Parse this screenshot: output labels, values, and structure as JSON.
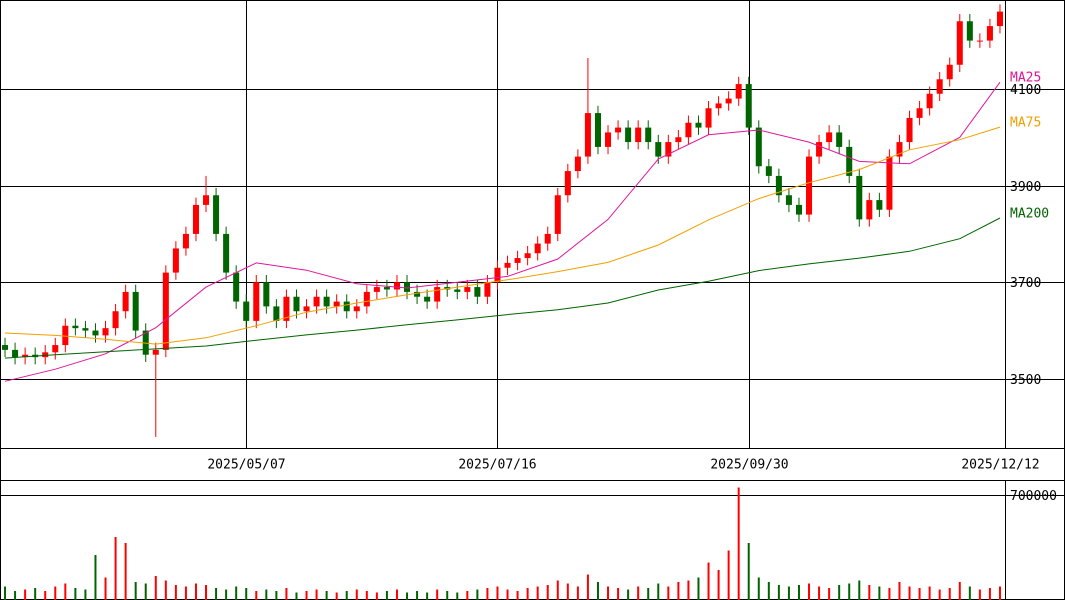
{
  "chart_data": {
    "type": "candlestick",
    "categories": [
      null,
      null,
      null,
      null,
      null,
      null,
      null,
      null,
      null,
      null,
      null,
      null,
      null,
      null,
      null,
      null,
      null,
      null,
      null,
      null,
      null,
      null,
      null,
      null,
      "2025/05/07",
      null,
      null,
      null,
      null,
      null,
      null,
      null,
      null,
      null,
      null,
      null,
      null,
      null,
      null,
      null,
      null,
      null,
      null,
      null,
      null,
      null,
      null,
      null,
      null,
      "2025/07/16",
      null,
      null,
      null,
      null,
      null,
      null,
      null,
      null,
      null,
      null,
      null,
      null,
      null,
      null,
      null,
      null,
      null,
      null,
      null,
      null,
      null,
      null,
      null,
      null,
      "2025/09/30",
      null,
      null,
      null,
      null,
      null,
      null,
      null,
      null,
      null,
      null,
      null,
      null,
      null,
      null,
      null,
      null,
      null,
      null,
      null,
      null,
      null,
      null,
      null,
      null,
      "2025/12/12"
    ],
    "open": [
      3570,
      3560,
      3545,
      3550,
      3545,
      3555,
      3570,
      3610,
      3605,
      3600,
      3590,
      3605,
      3640,
      3680,
      3600,
      3550,
      3560,
      3720,
      3770,
      3800,
      3860,
      3880,
      3800,
      3720,
      3660,
      3620,
      3700,
      3650,
      3620,
      3670,
      3640,
      3650,
      3670,
      3650,
      3660,
      3640,
      3650,
      3680,
      3690,
      3685,
      3700,
      3680,
      3670,
      3660,
      3690,
      3685,
      3680,
      3690,
      3670,
      3700,
      3730,
      3740,
      3750,
      3760,
      3780,
      3800,
      3880,
      3930,
      3960,
      4050,
      3980,
      4010,
      4020,
      3990,
      4020,
      3990,
      3960,
      3990,
      4000,
      4030,
      4020,
      4060,
      4070,
      4080,
      4110,
      4020,
      3940,
      3920,
      3880,
      3860,
      3840,
      3960,
      3990,
      4010,
      3980,
      3920,
      3830,
      3870,
      3850,
      3960,
      3990,
      4040,
      4060,
      4090,
      4120,
      4150,
      4240,
      4200,
      4200,
      4230
    ],
    "high": [
      3585,
      3575,
      3565,
      3565,
      3570,
      3585,
      3625,
      3625,
      3620,
      3615,
      3620,
      3655,
      3695,
      3695,
      3615,
      3575,
      3735,
      3785,
      3815,
      3875,
      3920,
      3895,
      3815,
      3735,
      3675,
      3715,
      3715,
      3665,
      3685,
      3685,
      3665,
      3685,
      3685,
      3675,
      3675,
      3665,
      3695,
      3705,
      3705,
      3715,
      3715,
      3695,
      3685,
      3705,
      3705,
      3700,
      3705,
      3705,
      3715,
      3745,
      3755,
      3765,
      3775,
      3795,
      3815,
      3895,
      3945,
      3975,
      4164,
      4065,
      4025,
      4035,
      4035,
      4035,
      4035,
      4005,
      4005,
      4015,
      4045,
      4045,
      4075,
      4085,
      4095,
      4125,
      4125,
      4035,
      3955,
      3935,
      3895,
      3875,
      3975,
      4005,
      4025,
      4025,
      3995,
      3935,
      3885,
      3885,
      3975,
      4005,
      4055,
      4075,
      4105,
      4135,
      4165,
      4255,
      4255,
      4215,
      4245,
      4275
    ],
    "low": [
      3545,
      3530,
      3530,
      3530,
      3530,
      3540,
      3555,
      3590,
      3585,
      3575,
      3575,
      3590,
      3625,
      3585,
      3535,
      3380,
      3545,
      3705,
      3755,
      3785,
      3845,
      3785,
      3705,
      3645,
      3605,
      3605,
      3635,
      3605,
      3605,
      3625,
      3625,
      3635,
      3635,
      3635,
      3625,
      3625,
      3635,
      3665,
      3670,
      3670,
      3665,
      3655,
      3645,
      3645,
      3670,
      3665,
      3665,
      3655,
      3655,
      3685,
      3715,
      3725,
      3735,
      3745,
      3765,
      3785,
      3865,
      3915,
      3945,
      3965,
      3965,
      3995,
      3975,
      3975,
      3975,
      3945,
      3945,
      3975,
      3985,
      4005,
      4005,
      4045,
      4055,
      4065,
      4005,
      3925,
      3905,
      3865,
      3845,
      3825,
      3825,
      3945,
      3975,
      3965,
      3905,
      3815,
      3815,
      3835,
      3835,
      3945,
      3975,
      4025,
      4045,
      4075,
      4105,
      4135,
      4185,
      4185,
      4185,
      4215
    ],
    "close": [
      3560,
      3545,
      3550,
      3545,
      3555,
      3570,
      3610,
      3605,
      3600,
      3590,
      3605,
      3640,
      3680,
      3600,
      3550,
      3560,
      3720,
      3770,
      3800,
      3860,
      3880,
      3800,
      3720,
      3660,
      3620,
      3700,
      3650,
      3620,
      3670,
      3640,
      3650,
      3670,
      3650,
      3660,
      3640,
      3650,
      3680,
      3690,
      3685,
      3700,
      3680,
      3670,
      3660,
      3690,
      3685,
      3680,
      3690,
      3670,
      3700,
      3730,
      3740,
      3750,
      3760,
      3780,
      3800,
      3880,
      3930,
      3960,
      4050,
      3980,
      4010,
      4020,
      3990,
      4020,
      3990,
      3960,
      3990,
      4000,
      4030,
      4020,
      4060,
      4070,
      4080,
      4110,
      4020,
      3940,
      3920,
      3880,
      3860,
      3840,
      3960,
      3990,
      4010,
      3980,
      3920,
      3830,
      3870,
      3850,
      3960,
      3990,
      4040,
      4060,
      4090,
      4120,
      4150,
      4240,
      4200,
      4200,
      4230,
      4260
    ],
    "up_color": "#ff0000",
    "down_color": "#006400",
    "ylim": [
      3357,
      4284
    ],
    "yticks": [
      3500,
      3700,
      3900,
      4100
    ],
    "grid": true,
    "moving_averages": [
      {
        "name": "MA25",
        "color": "#e0169b",
        "x": [
          0,
          5,
          10,
          15,
          20,
          25,
          30,
          35,
          40,
          45,
          50,
          55,
          60,
          65,
          70,
          75,
          80,
          85,
          90,
          95,
          99
        ],
        "values": [
          3495,
          3520,
          3552,
          3606,
          3690,
          3740,
          3725,
          3697,
          3688,
          3700,
          3712,
          3748,
          3830,
          3955,
          4005,
          4015,
          3990,
          3950,
          3945,
          4000,
          4114
        ]
      },
      {
        "name": "MA75",
        "color": "#f0a000",
        "x": [
          0,
          5,
          10,
          15,
          20,
          25,
          30,
          35,
          40,
          45,
          50,
          55,
          60,
          65,
          70,
          75,
          80,
          85,
          90,
          95,
          99
        ],
        "values": [
          3595,
          3590,
          3582,
          3572,
          3585,
          3610,
          3638,
          3657,
          3674,
          3690,
          3705,
          3722,
          3741,
          3777,
          3829,
          3873,
          3906,
          3933,
          3974,
          3995,
          4021
        ]
      },
      {
        "name": "MA200",
        "color": "#006400",
        "x": [
          0,
          5,
          10,
          15,
          20,
          25,
          30,
          35,
          40,
          45,
          50,
          55,
          60,
          65,
          70,
          75,
          80,
          85,
          90,
          95,
          99
        ],
        "values": [
          3543,
          3550,
          3556,
          3562,
          3568,
          3580,
          3591,
          3601,
          3612,
          3622,
          3633,
          3643,
          3657,
          3684,
          3702,
          3724,
          3738,
          3750,
          3764,
          3790,
          3833
        ]
      }
    ],
    "volume": {
      "values": [
        90000,
        60000,
        70000,
        80000,
        60000,
        90000,
        110000,
        80000,
        70000,
        300000,
        150000,
        420000,
        380000,
        120000,
        110000,
        160000,
        130000,
        100000,
        90000,
        110000,
        100000,
        80000,
        70000,
        90000,
        80000,
        60000,
        70000,
        60000,
        80000,
        50000,
        60000,
        70000,
        60000,
        50000,
        60000,
        70000,
        60000,
        50000,
        60000,
        70000,
        50000,
        60000,
        50000,
        70000,
        60000,
        50000,
        60000,
        70000,
        80000,
        90000,
        70000,
        60000,
        80000,
        90000,
        100000,
        130000,
        110000,
        90000,
        170000,
        120000,
        90000,
        80000,
        70000,
        90000,
        80000,
        110000,
        90000,
        120000,
        130000,
        150000,
        250000,
        200000,
        330000,
        750000,
        380000,
        150000,
        120000,
        100000,
        90000,
        100000,
        110000,
        90000,
        80000,
        100000,
        110000,
        130000,
        100000,
        90000,
        80000,
        120000,
        90000,
        80000,
        90000,
        70000,
        80000,
        120000,
        90000,
        70000,
        80000,
        90000
      ],
      "ylim": [
        0,
        800000
      ],
      "yticks": [
        700000
      ]
    }
  }
}
